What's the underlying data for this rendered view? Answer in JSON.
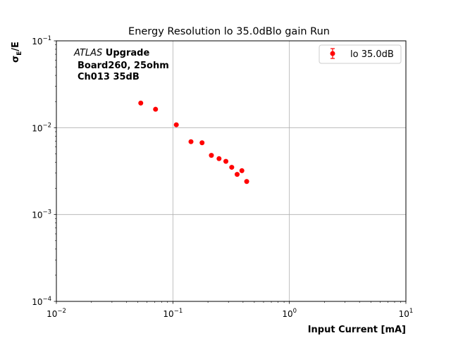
{
  "chart_data": {
    "type": "scatter",
    "title": "Energy Resolution lo 35.0dBlo gain Run",
    "xlabel": "Input Current [mA]",
    "ylabel_main": "σ",
    "ylabel_sub": "E",
    "ylabel_tail": "/E",
    "xscale": "log",
    "yscale": "log",
    "xlim": [
      0.01,
      10
    ],
    "ylim": [
      0.0001,
      0.1
    ],
    "grid": true,
    "legend_position": "top-right",
    "x_ticks": [
      {
        "value": 0.01,
        "base": "10",
        "exp": "−2"
      },
      {
        "value": 0.1,
        "base": "10",
        "exp": "−1"
      },
      {
        "value": 1,
        "base": "10",
        "exp": "0"
      },
      {
        "value": 10,
        "base": "10",
        "exp": "1"
      }
    ],
    "y_ticks": [
      {
        "value": 0.0001,
        "base": "10",
        "exp": "−4"
      },
      {
        "value": 0.001,
        "base": "10",
        "exp": "−3"
      },
      {
        "value": 0.01,
        "base": "10",
        "exp": "−2"
      },
      {
        "value": 0.1,
        "base": "10",
        "exp": "−1"
      }
    ],
    "annotation": {
      "experiment_italic": "ATLAS",
      "experiment_bold": " Upgrade",
      "line2": "Board260, 25ohm",
      "line3": "Ch013 35dB"
    },
    "series": [
      {
        "name": "lo 35.0dB",
        "color": "#ff0000",
        "x": [
          0.053,
          0.071,
          0.107,
          0.143,
          0.178,
          0.214,
          0.249,
          0.285,
          0.32,
          0.356,
          0.391,
          0.43
        ],
        "y": [
          0.0192,
          0.0163,
          0.0108,
          0.0069,
          0.0067,
          0.0048,
          0.0044,
          0.0041,
          0.0035,
          0.0029,
          0.0032,
          0.0024
        ]
      }
    ]
  }
}
